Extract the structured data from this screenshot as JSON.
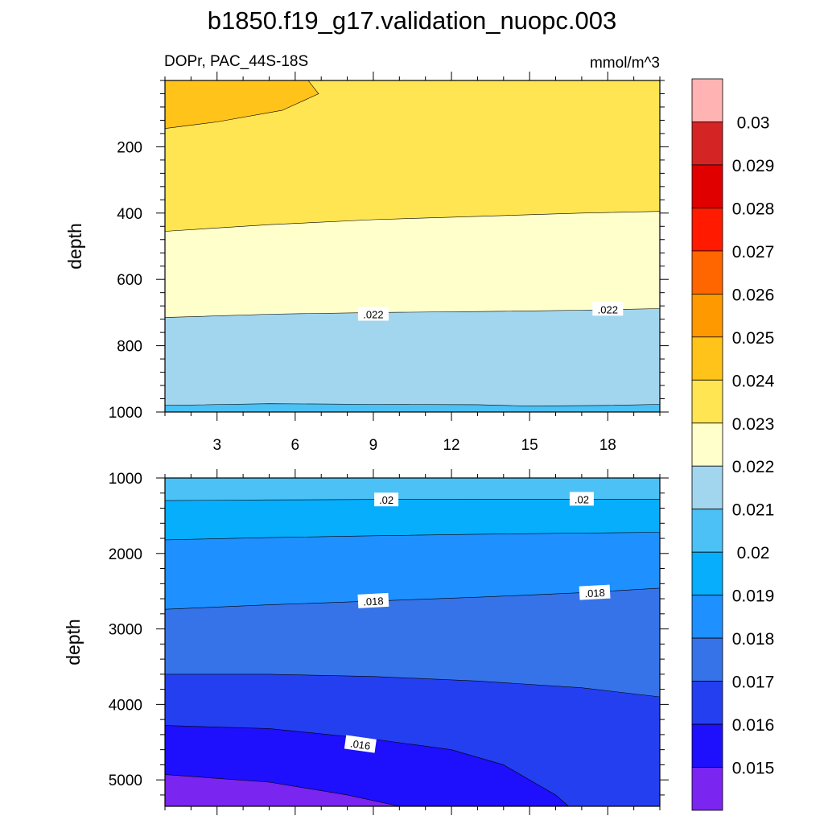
{
  "chart_data": {
    "type": "contour",
    "title": "b1850.f19_g17.validation_nuopc.003",
    "left_subtitle": "DOPr, PAC_44S-18S",
    "right_subtitle": "mmol/m^3",
    "ylabel": "depth",
    "x_ticks": [
      "3",
      "6",
      "9",
      "12",
      "15",
      "18"
    ],
    "x_range": [
      1,
      20
    ],
    "panels": [
      {
        "name": "upper",
        "y_range": [
          0,
          1000
        ],
        "y_ticks": [
          "200",
          "400",
          "600",
          "800",
          "1000"
        ],
        "contours": [
          {
            "value": 0.024,
            "points": [
              [
                1,
                0
              ],
              [
                6.5,
                0
              ],
              [
                6.8,
                30
              ],
              [
                6.9,
                40
              ],
              [
                5.5,
                90
              ],
              [
                3,
                125
              ],
              [
                1,
                145
              ]
            ]
          },
          {
            "value": 0.023,
            "points": [
              [
                1,
                455
              ],
              [
                5,
                435
              ],
              [
                9,
                420
              ],
              [
                13,
                410
              ],
              [
                17,
                400
              ],
              [
                20,
                395
              ]
            ]
          },
          {
            "value": 0.022,
            "points": [
              [
                1,
                715
              ],
              [
                5,
                705
              ],
              [
                9,
                700
              ],
              [
                13,
                697
              ],
              [
                17,
                693
              ],
              [
                20,
                688
              ]
            ]
          },
          {
            "value": 0.021,
            "points": [
              [
                1,
                980
              ],
              [
                5,
                975
              ],
              [
                9,
                977
              ],
              [
                13,
                978
              ],
              [
                15,
                982
              ],
              [
                18,
                980
              ],
              [
                20,
                977
              ]
            ]
          }
        ],
        "fills": [
          "#FFE552",
          "#FFC319",
          "#FFFFCC",
          "#A2D6EF",
          "#4BC1F5"
        ],
        "labels": [
          {
            "text": ".022",
            "x": 9.0,
            "y": 705,
            "angle": 0
          },
          {
            "text": ".022",
            "x": 18.0,
            "y": 690,
            "angle": 0
          }
        ]
      },
      {
        "name": "lower",
        "y_range": [
          1000,
          5350
        ],
        "y_ticks": [
          "1000",
          "2000",
          "3000",
          "4000",
          "5000"
        ],
        "contours": [
          {
            "value": 0.02,
            "points": [
              [
                1,
                1300
              ],
              [
                5,
                1290
              ],
              [
                9,
                1285
              ],
              [
                13,
                1282
              ],
              [
                17,
                1282
              ],
              [
                20,
                1280
              ]
            ]
          },
          {
            "value": 0.019,
            "points": [
              [
                1,
                1820
              ],
              [
                5,
                1790
              ],
              [
                9,
                1765
              ],
              [
                13,
                1745
              ],
              [
                17,
                1730
              ],
              [
                20,
                1720
              ]
            ]
          },
          {
            "value": 0.018,
            "points": [
              [
                1,
                2740
              ],
              [
                5,
                2680
              ],
              [
                9,
                2630
              ],
              [
                13,
                2580
              ],
              [
                17,
                2520
              ],
              [
                20,
                2460
              ]
            ]
          },
          {
            "value": 0.017,
            "points": [
              [
                1,
                3600
              ],
              [
                5,
                3600
              ],
              [
                9,
                3630
              ],
              [
                13,
                3690
              ],
              [
                17,
                3780
              ],
              [
                20,
                3900
              ]
            ]
          },
          {
            "value": 0.016,
            "points": [
              [
                1,
                4280
              ],
              [
                5,
                4320
              ],
              [
                9,
                4460
              ],
              [
                12,
                4600
              ],
              [
                14,
                4800
              ],
              [
                15,
                5000
              ],
              [
                16,
                5200
              ],
              [
                16.5,
                5350
              ]
            ]
          },
          {
            "value": 0.015,
            "points": [
              [
                1,
                4930
              ],
              [
                5,
                5030
              ],
              [
                8,
                5200
              ],
              [
                10,
                5350
              ]
            ]
          }
        ],
        "fills": [
          "#4BC1F5",
          "#06AEFC",
          "#1E90FF",
          "#3673E8",
          "#243FEF",
          "#1E0FFC",
          "#7A25F0"
        ],
        "labels": [
          {
            "text": ".02",
            "x": 9.5,
            "y": 1290,
            "angle": 0
          },
          {
            "text": ".02",
            "x": 17.0,
            "y": 1282,
            "angle": 0
          },
          {
            "text": ".018",
            "x": 9.0,
            "y": 2630,
            "angle": -3
          },
          {
            "text": ".018",
            "x": 17.5,
            "y": 2520,
            "angle": -3
          },
          {
            "text": ".016",
            "x": 8.5,
            "y": 4530,
            "angle": 8
          }
        ]
      }
    ],
    "colorbar": {
      "colors": [
        "#FFB3B3",
        "#D42424",
        "#E00000",
        "#FF1A00",
        "#FF6600",
        "#FF9900",
        "#FFC319",
        "#FFE552",
        "#FFFFCC",
        "#A2D6EF",
        "#4BC1F5",
        "#06AEFC",
        "#1E90FF",
        "#3673E8",
        "#243FEF",
        "#1E0FFC",
        "#7A25F0"
      ],
      "labels": [
        "0.03",
        "0.029",
        "0.028",
        "0.027",
        "0.026",
        "0.025",
        "0.024",
        "0.023",
        "0.022",
        "0.021",
        "0.02",
        "0.019",
        "0.018",
        "0.017",
        "0.016",
        "0.015"
      ]
    }
  }
}
